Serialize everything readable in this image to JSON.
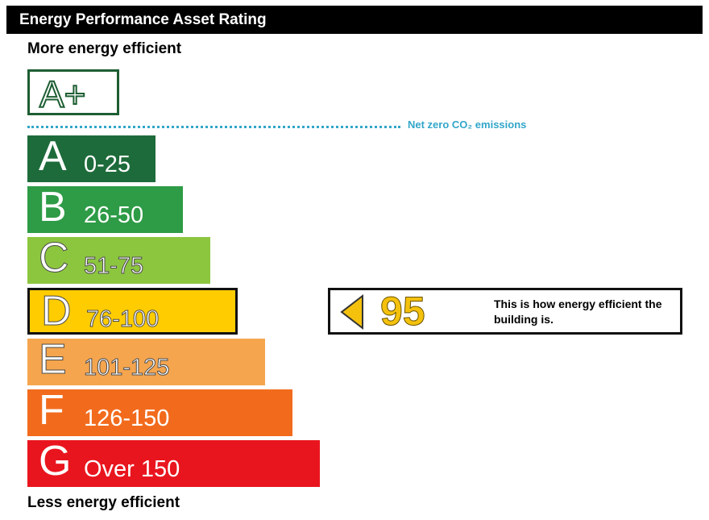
{
  "header": {
    "title": "Energy Performance Asset Rating"
  },
  "labels": {
    "more_efficient": "More energy efficient",
    "less_efficient": "Less energy efficient",
    "net_zero": "Net zero CO₂ emissions"
  },
  "chart_data": {
    "type": "bar",
    "title": "Energy Performance Asset Rating",
    "top_band": {
      "letter": "A+",
      "color": "#1d5e32"
    },
    "bands": [
      {
        "letter": "A",
        "range": "0-25",
        "color": "#1d6b3a",
        "text_outline": false
      },
      {
        "letter": "B",
        "range": "26-50",
        "color": "#2e9b46",
        "text_outline": false
      },
      {
        "letter": "C",
        "range": "51-75",
        "color": "#8cc63f",
        "text_outline": true
      },
      {
        "letter": "D",
        "range": "76-100",
        "color": "#ffcc00",
        "text_outline": true
      },
      {
        "letter": "E",
        "range": "101-125",
        "color": "#f5a54e",
        "text_outline": true
      },
      {
        "letter": "F",
        "range": "126-150",
        "color": "#f26b1d",
        "text_outline": false
      },
      {
        "letter": "G",
        "range": "Over 150",
        "color": "#e9151e",
        "text_outline": false
      }
    ],
    "current_band": "D",
    "rating": {
      "value": "95",
      "caption": "This is how energy efficient the building is.",
      "color": "#f4c10d"
    },
    "net_zero_color": "#31a6c9"
  }
}
